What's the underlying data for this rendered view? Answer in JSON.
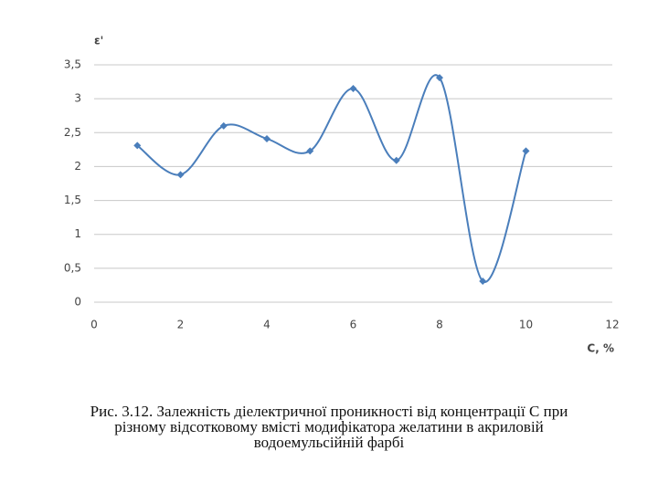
{
  "chart_data": {
    "type": "scatter-smooth",
    "y_label": "ε'",
    "x_label": "C, %",
    "x": [
      1,
      2,
      3,
      4,
      5,
      6,
      7,
      8,
      9,
      10
    ],
    "series": [
      {
        "color": "#4a7ebb",
        "values": [
          2.31,
          1.88,
          2.6,
          2.41,
          2.23,
          3.15,
          2.09,
          3.31,
          0.31,
          2.23
        ]
      }
    ],
    "xlim": [
      0,
      12
    ],
    "xticks": [
      0,
      2,
      4,
      6,
      8,
      10,
      12
    ],
    "ylim": [
      0,
      3.5
    ],
    "yticks": [
      0,
      {
        "value": 0.5,
        "label": "0,5"
      },
      1,
      {
        "value": 1.5,
        "label": "1,5"
      },
      2,
      {
        "value": 2.5,
        "label": "2,5"
      },
      3,
      {
        "value": 3.5,
        "label": "3,5"
      }
    ],
    "grid": true
  },
  "caption": [
    "Рис. 3.12. Залежність діелектричної проникності  від концентрації C при",
    "різному відсотковому вмісті модифікатора желатини в акриловій",
    "водоемульсійній  фарбі"
  ]
}
